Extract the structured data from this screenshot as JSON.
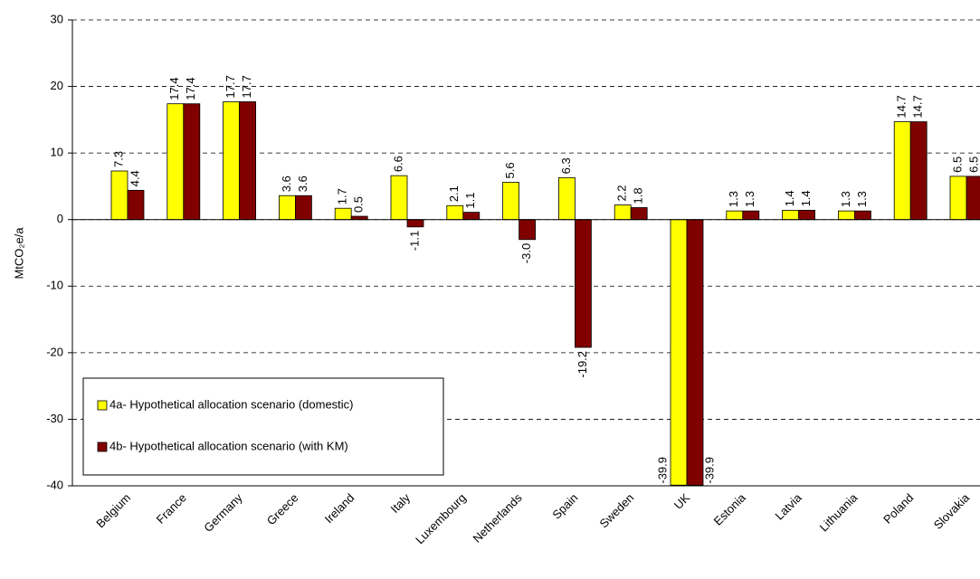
{
  "chart_data": {
    "type": "bar",
    "y_label": "MtCO₂e/a",
    "categories": [
      "Belgium",
      "France",
      "Germany",
      "Greece",
      "Ireland",
      "Italy",
      "Luxembourg",
      "Netherlands",
      "Spain",
      "Sweden",
      "UK",
      "Estonia",
      "Latvia",
      "Lithuania",
      "Poland",
      "Slovakia"
    ],
    "series": [
      {
        "name": "4a- Hypothetical allocation scenario (domestic)",
        "color": "#ffff00",
        "values": [
          7.3,
          17.4,
          17.7,
          3.6,
          1.7,
          6.6,
          2.1,
          5.6,
          6.3,
          2.2,
          -39.9,
          1.3,
          1.4,
          1.3,
          14.7,
          6.5
        ],
        "value_labels": [
          "7.3",
          "17.4",
          "17.7",
          "3.6",
          "1.7",
          "6.6",
          "2.1",
          "5.6",
          "6.3",
          "2.2",
          "-39.9",
          "1.3",
          "1.4",
          "1.3",
          "14.7",
          "6.5"
        ]
      },
      {
        "name": "4b- Hypothetical allocation scenario (with KM)",
        "color": "#800000",
        "values": [
          4.4,
          17.4,
          17.7,
          3.6,
          0.5,
          -1.1,
          1.1,
          -3.0,
          -19.2,
          1.8,
          -39.9,
          1.3,
          1.4,
          1.3,
          14.7,
          6.5
        ],
        "value_labels": [
          "4.4",
          "17.4",
          "17.7",
          "3.6",
          "0.5",
          "-1.1",
          "1.1",
          "-3.0",
          "-19.2",
          "1.8",
          "-39.9",
          "1.3",
          "1.4",
          "1.3",
          "14.7",
          "6.5"
        ]
      }
    ],
    "ylim": [
      -40,
      30
    ],
    "yticks": [
      -40,
      -30,
      -20,
      -10,
      0,
      10,
      20,
      30
    ],
    "grid": true,
    "legend": "lower-left"
  }
}
